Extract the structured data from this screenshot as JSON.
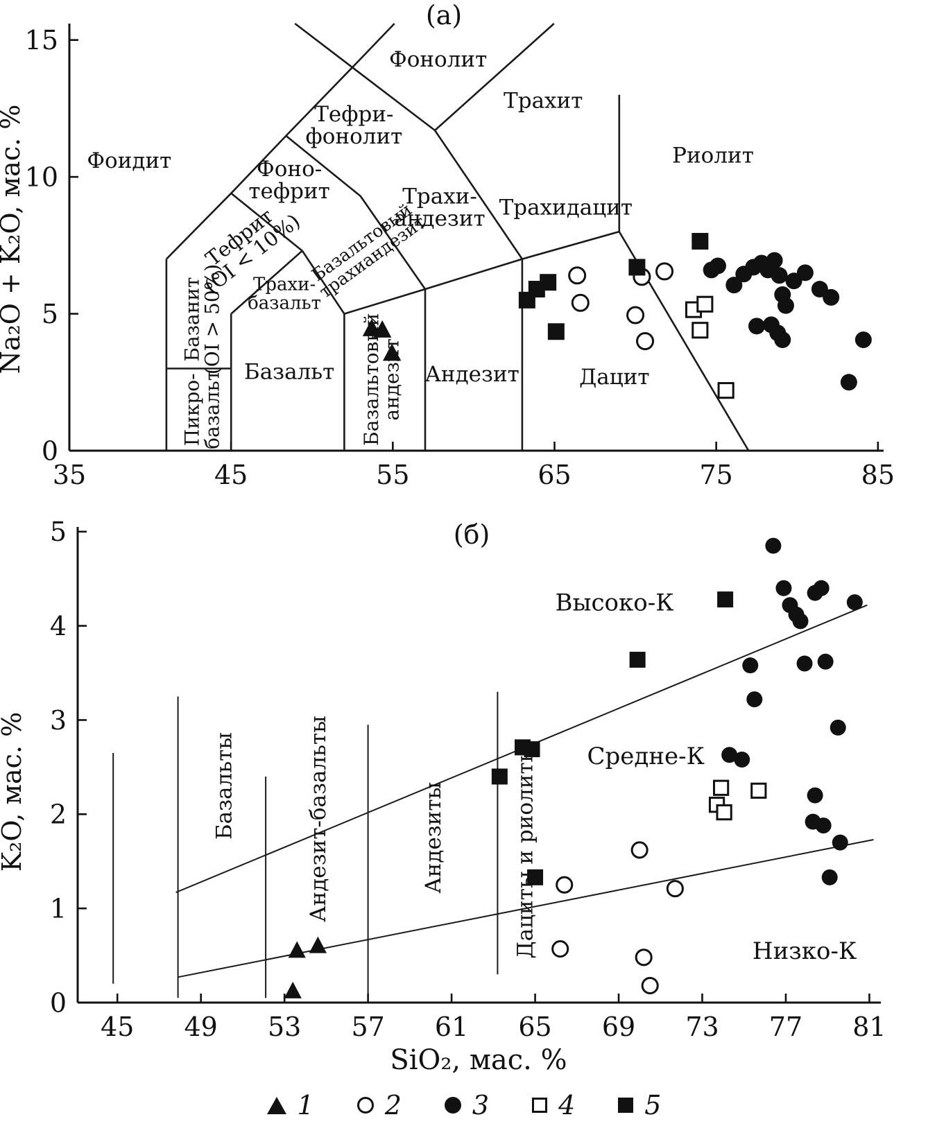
{
  "legend": {
    "items": [
      {
        "symbol": "triangle-filled",
        "label": "1"
      },
      {
        "symbol": "circle-open",
        "label": "2"
      },
      {
        "symbol": "circle-filled",
        "label": "3"
      },
      {
        "symbol": "square-open",
        "label": "4"
      },
      {
        "symbol": "square-filled",
        "label": "5"
      }
    ]
  },
  "chart_data": [
    {
      "id": "panel-a",
      "type": "scatter",
      "title": "(а)",
      "xlabel": "",
      "ylabel": "Na₂O + K₂O, мас. %",
      "xlim": [
        35,
        85.35
      ],
      "ylim": [
        0,
        15.6
      ],
      "xticks": [
        35,
        45,
        55,
        65,
        75,
        85
      ],
      "yticks": [
        0,
        5,
        10,
        15
      ],
      "grid": false,
      "boundaries": [
        {
          "pts": [
            [
              41,
              0
            ],
            [
              41,
              7
            ]
          ]
        },
        {
          "pts": [
            [
              41,
              3
            ],
            [
              45,
              3
            ]
          ]
        },
        {
          "pts": [
            [
              45,
              0
            ],
            [
              45,
              5
            ]
          ]
        },
        {
          "pts": [
            [
              45,
              5
            ],
            [
              49.4,
              7.3
            ]
          ]
        },
        {
          "pts": [
            [
              41,
              7
            ],
            [
              45,
              9.4
            ],
            [
              48.4,
              11.5
            ],
            [
              52.5,
              14
            ],
            [
              55.1,
              15.6
            ]
          ]
        },
        {
          "pts": [
            [
              45,
              9.4
            ],
            [
              49.4,
              7.3
            ]
          ]
        },
        {
          "pts": [
            [
              48.4,
              11.5
            ],
            [
              53,
              9.3
            ]
          ]
        },
        {
          "pts": [
            [
              48.95,
              15.6
            ],
            [
              52.5,
              14
            ],
            [
              57.6,
              11.7
            ]
          ]
        },
        {
          "pts": [
            [
              57.6,
              11.7
            ],
            [
              64.97,
              15.6
            ]
          ]
        },
        {
          "pts": [
            [
              49.4,
              7.3
            ],
            [
              52,
              5
            ]
          ]
        },
        {
          "pts": [
            [
              52,
              5
            ],
            [
              57,
              5.9
            ],
            [
              63,
              7
            ],
            [
              69,
              8
            ]
          ]
        },
        {
          "pts": [
            [
              53,
              9.3
            ],
            [
              57,
              5.9
            ]
          ]
        },
        {
          "pts": [
            [
              57.6,
              11.7
            ],
            [
              63,
              7
            ]
          ]
        },
        {
          "pts": [
            [
              52,
              0
            ],
            [
              52,
              5
            ]
          ]
        },
        {
          "pts": [
            [
              57,
              0
            ],
            [
              57,
              5.9
            ]
          ]
        },
        {
          "pts": [
            [
              63,
              0
            ],
            [
              63,
              7
            ]
          ]
        },
        {
          "pts": [
            [
              69,
              8
            ],
            [
              77,
              0
            ]
          ]
        },
        {
          "pts": [
            [
              69,
              8
            ],
            [
              69,
              13
            ]
          ]
        }
      ],
      "field_labels": [
        {
          "lines": [
            "Фоидит"
          ],
          "x": 38.7,
          "y": 10.6,
          "size": 31
        },
        {
          "lines": [
            "Фонолит"
          ],
          "x": 57.8,
          "y": 14.3,
          "size": 31
        },
        {
          "lines": [
            "Тефри-",
            "фонолит"
          ],
          "x": 52.6,
          "y": 11.9,
          "size": 31
        },
        {
          "lines": [
            "Фоно-",
            "тефрит"
          ],
          "x": 48.6,
          "y": 9.9,
          "size": 31
        },
        {
          "lines": [
            "Тефрит",
            "(OI < 10%)"
          ],
          "x": 45.9,
          "y": 7.5,
          "rot": -38,
          "size": 29
        },
        {
          "lines": [
            "Базанит",
            "(OI > 50%)"
          ],
          "x": 43.2,
          "y": 4.8,
          "rot": -90,
          "size": 28
        },
        {
          "lines": [
            "Пикро-",
            "базальт"
          ],
          "x": 43.2,
          "y": 1.5,
          "rot": -90,
          "size": 28
        },
        {
          "lines": [
            "Базальт"
          ],
          "x": 48.6,
          "y": 2.9,
          "size": 31
        },
        {
          "lines": [
            "Трахи-",
            "базальт"
          ],
          "x": 48.3,
          "y": 5.75,
          "size": 26
        },
        {
          "lines": [
            "Базальтовый",
            "трахиандезит"
          ],
          "x": 53.4,
          "y": 7.35,
          "rot": -36,
          "size": 25
        },
        {
          "lines": [
            "Трахи-",
            "андезит"
          ],
          "x": 57.9,
          "y": 8.9,
          "size": 31
        },
        {
          "lines": [
            "Трахит"
          ],
          "x": 64.3,
          "y": 12.8,
          "size": 31
        },
        {
          "lines": [
            "Трахидацит"
          ],
          "x": 65.7,
          "y": 8.9,
          "size": 31
        },
        {
          "lines": [
            "Риолит"
          ],
          "x": 74.8,
          "y": 10.8,
          "size": 31
        },
        {
          "lines": [
            "Базальтовый",
            "андезит"
          ],
          "x": 54.3,
          "y": 2.6,
          "rot": -90,
          "size": 28
        },
        {
          "lines": [
            "Андезит"
          ],
          "x": 59.9,
          "y": 2.8,
          "size": 31
        },
        {
          "lines": [
            "Дацит"
          ],
          "x": 68.7,
          "y": 2.7,
          "size": 31
        }
      ],
      "series": [
        {
          "name": "1",
          "symbol": "triangle-filled",
          "points": [
            [
              53.7,
              4.45
            ],
            [
              54.35,
              4.4
            ],
            [
              54.95,
              3.55
            ]
          ]
        },
        {
          "name": "2",
          "symbol": "circle-open",
          "points": [
            [
              66.4,
              6.4
            ],
            [
              66.6,
              5.4
            ],
            [
              70.4,
              6.35
            ],
            [
              71.8,
              6.55
            ],
            [
              70.0,
              4.95
            ],
            [
              70.6,
              4.0
            ]
          ]
        },
        {
          "name": "3",
          "symbol": "circle-filled",
          "points": [
            [
              74.7,
              6.6
            ],
            [
              75.1,
              6.75
            ],
            [
              76.1,
              6.05
            ],
            [
              76.7,
              6.45
            ],
            [
              77.3,
              6.7
            ],
            [
              77.8,
              6.85
            ],
            [
              78.2,
              6.6
            ],
            [
              78.6,
              6.95
            ],
            [
              78.9,
              6.4
            ],
            [
              79.1,
              5.7
            ],
            [
              79.3,
              5.3
            ],
            [
              79.8,
              6.2
            ],
            [
              80.5,
              6.5
            ],
            [
              81.4,
              5.9
            ],
            [
              82.1,
              5.6
            ],
            [
              77.5,
              4.55
            ],
            [
              78.4,
              4.6
            ],
            [
              78.8,
              4.3
            ],
            [
              79.1,
              4.05
            ],
            [
              84.1,
              4.05
            ],
            [
              83.2,
              2.5
            ]
          ]
        },
        {
          "name": "4",
          "symbol": "square-open",
          "points": [
            [
              73.6,
              5.15
            ],
            [
              74.3,
              5.35
            ],
            [
              74.0,
              4.4
            ],
            [
              75.6,
              2.2
            ]
          ]
        },
        {
          "name": "5",
          "symbol": "square-filled",
          "points": [
            [
              63.3,
              5.5
            ],
            [
              63.9,
              5.9
            ],
            [
              64.6,
              6.15
            ],
            [
              65.1,
              4.35
            ],
            [
              70.1,
              6.7
            ],
            [
              74.0,
              7.65
            ]
          ]
        }
      ]
    },
    {
      "id": "panel-b",
      "type": "scatter",
      "title": "(б)",
      "xlabel": "SiO₂, мас. %",
      "ylabel": "K₂O, мас. %",
      "xlim": [
        43.1,
        81.55
      ],
      "ylim": [
        0,
        5.05
      ],
      "xticks": [
        45,
        49,
        53,
        57,
        61,
        65,
        69,
        73,
        77,
        81
      ],
      "yticks": [
        0,
        1,
        2,
        3,
        4,
        5
      ],
      "grid": false,
      "boundaries": [
        {
          "pts": [
            [
              44.8,
              0.2
            ],
            [
              44.8,
              2.65
            ]
          ],
          "w": 2
        },
        {
          "pts": [
            [
              47.9,
              0.05
            ],
            [
              47.9,
              3.25
            ]
          ],
          "w": 2
        },
        {
          "pts": [
            [
              52.1,
              0.05
            ],
            [
              52.1,
              2.4
            ]
          ],
          "w": 2
        },
        {
          "pts": [
            [
              57.0,
              0.05
            ],
            [
              57.0,
              2.95
            ]
          ],
          "w": 2
        },
        {
          "pts": [
            [
              63.2,
              0.3
            ],
            [
              63.2,
              3.3
            ]
          ],
          "w": 2
        },
        {
          "pts": [
            [
              47.8,
              1.17
            ],
            [
              80.9,
              4.22
            ]
          ],
          "w": 2
        },
        {
          "pts": [
            [
              47.9,
              0.27
            ],
            [
              81.2,
              1.73
            ]
          ],
          "w": 2
        }
      ],
      "field_labels": [
        {
          "lines": [
            "Высоко-К"
          ],
          "x": 68.8,
          "y": 4.25,
          "size": 34
        },
        {
          "lines": [
            "Средне-К"
          ],
          "x": 70.3,
          "y": 2.62,
          "size": 34
        },
        {
          "lines": [
            "Низко-К"
          ],
          "x": 77.9,
          "y": 0.55,
          "size": 34
        },
        {
          "lines": [
            "Базальты"
          ],
          "x": 50.1,
          "y": 2.3,
          "rot": -90,
          "size": 31
        },
        {
          "lines": [
            "Андезит-базальты"
          ],
          "x": 54.6,
          "y": 1.95,
          "rot": -90,
          "size": 31
        },
        {
          "lines": [
            "Андезиты"
          ],
          "x": 60.1,
          "y": 1.75,
          "rot": -90,
          "size": 31
        },
        {
          "lines": [
            "Дациты и риолиты"
          ],
          "x": 64.5,
          "y": 1.6,
          "rot": -90,
          "size": 31
        }
      ],
      "series": [
        {
          "name": "1",
          "symbol": "triangle-filled",
          "points": [
            [
              53.6,
              0.55
            ],
            [
              54.6,
              0.6
            ],
            [
              53.4,
              0.12
            ]
          ]
        },
        {
          "name": "2",
          "symbol": "circle-open",
          "points": [
            [
              66.4,
              1.25
            ],
            [
              66.2,
              0.57
            ],
            [
              70.0,
              1.62
            ],
            [
              70.2,
              0.48
            ],
            [
              70.5,
              0.18
            ],
            [
              71.7,
              1.21
            ]
          ]
        },
        {
          "name": "3",
          "symbol": "circle-filled",
          "points": [
            [
              76.4,
              4.85
            ],
            [
              76.9,
              4.4
            ],
            [
              77.2,
              4.22
            ],
            [
              77.5,
              4.12
            ],
            [
              77.7,
              4.05
            ],
            [
              78.4,
              4.35
            ],
            [
              78.7,
              4.4
            ],
            [
              77.9,
              3.6
            ],
            [
              78.9,
              3.62
            ],
            [
              75.3,
              3.58
            ],
            [
              75.5,
              3.22
            ],
            [
              74.3,
              2.63
            ],
            [
              74.9,
              2.58
            ],
            [
              79.5,
              2.92
            ],
            [
              78.4,
              2.2
            ],
            [
              78.3,
              1.92
            ],
            [
              78.8,
              1.88
            ],
            [
              79.6,
              1.7
            ],
            [
              79.1,
              1.33
            ],
            [
              80.3,
              4.25
            ]
          ]
        },
        {
          "name": "4",
          "symbol": "square-open",
          "points": [
            [
              73.9,
              2.28
            ],
            [
              73.7,
              2.1
            ],
            [
              74.05,
              2.02
            ],
            [
              75.7,
              2.25
            ]
          ]
        },
        {
          "name": "5",
          "symbol": "square-filled",
          "points": [
            [
              63.3,
              2.4
            ],
            [
              64.4,
              2.71
            ],
            [
              64.85,
              2.69
            ],
            [
              65.0,
              1.33
            ],
            [
              69.9,
              3.64
            ],
            [
              74.1,
              4.28
            ]
          ]
        }
      ]
    }
  ]
}
